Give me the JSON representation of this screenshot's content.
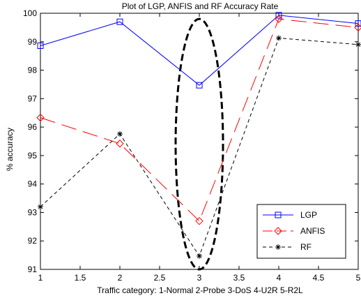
{
  "chart_data": {
    "type": "line",
    "title": "Plot of LGP, ANFIS and RF Accuracy Rate",
    "xlabel": "Traffic category:  1-Normal  2-Probe  3-DoS  4-U2R  5-R2L",
    "ylabel": "% accuracy",
    "xlim": [
      1,
      5
    ],
    "ylim": [
      91,
      100
    ],
    "xticks": [
      "1",
      "1.5",
      "2",
      "2.5",
      "3",
      "3.5",
      "4",
      "4.5",
      "5"
    ],
    "yticks": [
      "91",
      "92",
      "93",
      "94",
      "95",
      "96",
      "97",
      "98",
      "99",
      "100"
    ],
    "x": [
      1,
      2,
      3,
      4,
      5
    ],
    "grid": false,
    "legend_position": "bottom-right",
    "series": [
      {
        "name": "LGP",
        "values": [
          98.86,
          99.7,
          97.47,
          99.93,
          99.64
        ],
        "color": "#0000ff",
        "dash": "solid",
        "marker": "square"
      },
      {
        "name": "ANFIS",
        "values": [
          96.33,
          95.42,
          92.7,
          99.8,
          99.5
        ],
        "color": "#ff0000",
        "dash": "longdash",
        "marker": "diamond"
      },
      {
        "name": "RF",
        "values": [
          93.2,
          95.76,
          91.47,
          99.13,
          98.9
        ],
        "color": "#000000",
        "dash": "dashed",
        "marker": "star"
      }
    ],
    "annotation": {
      "type": "ellipse",
      "x": 3,
      "y_range": [
        91,
        99.8
      ],
      "style": "dashed",
      "color": "#000000"
    }
  }
}
